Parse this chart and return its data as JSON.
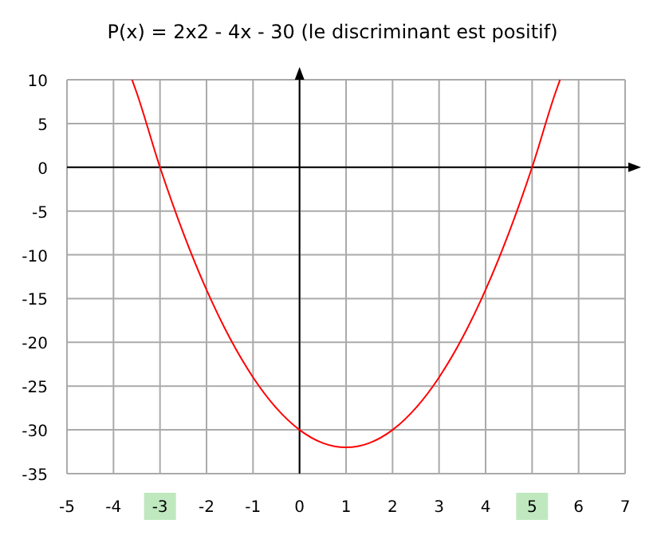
{
  "chart_data": {
    "type": "line",
    "title": "P(x) = 2x2 - 4x - 30 (le discriminant est positif)",
    "x": [
      -3.6,
      -3.5,
      -3,
      -2.5,
      -2,
      -1.5,
      -1,
      -0.5,
      0,
      0.5,
      1,
      1.5,
      2,
      2.5,
      3,
      3.5,
      4,
      4.5,
      5,
      5.5,
      5.6
    ],
    "series": [
      {
        "color": "#ff0000",
        "values": [
          10,
          8.5,
          0,
          -7.5,
          -14,
          -19.5,
          -24,
          -27.5,
          -30,
          -31.5,
          -32,
          -31.5,
          -30,
          -27.5,
          -24,
          -19.5,
          -14,
          -7.5,
          0,
          8.5,
          10
        ]
      }
    ],
    "xlim": [
      -5,
      7
    ],
    "ylim": [
      -35,
      10
    ],
    "xticks": [
      -5,
      -4,
      -3,
      -2,
      -1,
      0,
      1,
      2,
      3,
      4,
      5,
      6,
      7
    ],
    "yticks": [
      -35,
      -30,
      -25,
      -20,
      -15,
      -10,
      -5,
      0,
      5,
      10
    ],
    "grid": true,
    "marker": "none",
    "line_style": "solid"
  }
}
